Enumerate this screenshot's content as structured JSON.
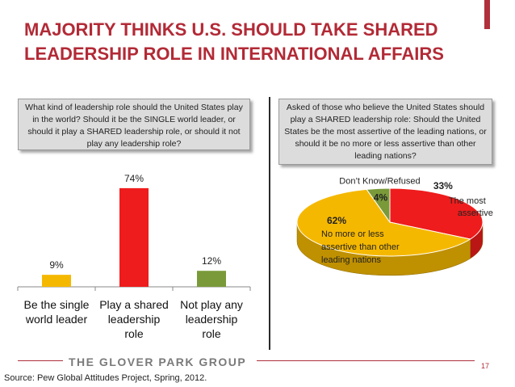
{
  "title": {
    "line1": "MAJORITY THINKS U.S. SHOULD TAKE SHARED",
    "line2": "LEADERSHIP ROLE IN INTERNATIONAL AFFAIRS"
  },
  "left_question": "What kind of leadership role should the United States play in the world? Should it be the SINGLE world leader, or should it play a SHARED leadership role, or should it not play any leadership role?",
  "right_question": "Asked of those who believe the United States should play a SHARED leadership role: Should the United States be the most assertive of the leading nations, or should it be no more or less assertive than other leading nations?",
  "footer": {
    "brand": "THE GLOVER PARK GROUP",
    "page_number": "17",
    "source": "Source: Pew Global Attitudes Project, Spring, 2012."
  },
  "colors": {
    "title": "#b22a36",
    "accent": "#b0303c",
    "gold": "#f5b800",
    "red": "#ee1c1c",
    "green": "#7a9a3a",
    "question_box": "#dcdcdc"
  },
  "chart_data": [
    {
      "type": "bar",
      "categories": [
        [
          "Be the single",
          "world leader"
        ],
        [
          "Play a shared",
          "leadership",
          "role"
        ],
        [
          "Not play any",
          "leadership",
          "role"
        ]
      ],
      "values": [
        9,
        74,
        12
      ],
      "value_labels": [
        "9%",
        "74%",
        "12%"
      ],
      "colors": [
        "#f5b800",
        "#ee1c1c",
        "#7a9a3a"
      ],
      "ylim": [
        0,
        80
      ]
    },
    {
      "type": "pie",
      "slices": [
        {
          "label": [
            "The most",
            "assertive"
          ],
          "value": 33,
          "value_label": "33%",
          "color": "#ee1c1c"
        },
        {
          "label": [
            "No more or less",
            "assertive than other",
            "leading nations"
          ],
          "value": 62,
          "value_label": "62%",
          "color": "#f5b800"
        },
        {
          "label": [
            "Don’t Know/Refused"
          ],
          "value": 4,
          "value_label": "4%",
          "color": "#7a9a3a"
        }
      ]
    }
  ]
}
